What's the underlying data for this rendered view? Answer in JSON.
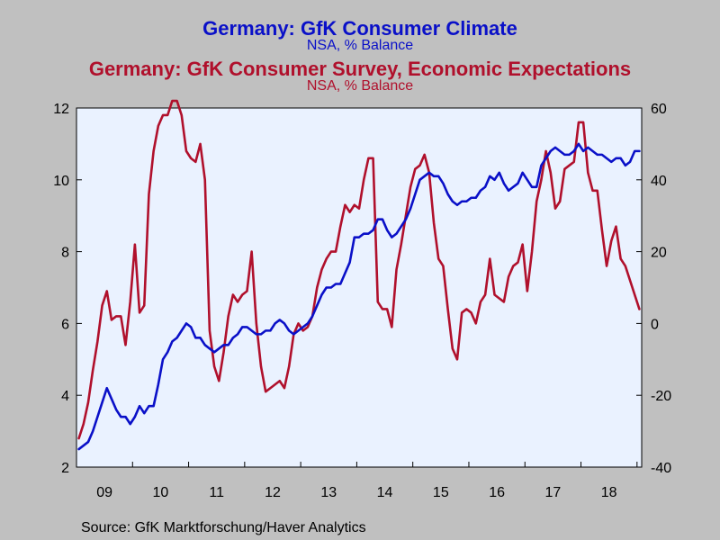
{
  "titles": {
    "title1": "Germany: GfK Consumer Climate",
    "subtitle1": "NSA, % Balance",
    "title2": "Germany: GfK Consumer Survey, Economic Expectations",
    "subtitle2": "NSA, % Balance"
  },
  "source": "Source:  GfK Marktforschung/Haver Analytics",
  "colors": {
    "plot_bg": "#eaf2ff",
    "background": "#c0c0c0",
    "series1": "#0a10c8",
    "series2": "#b0102c"
  },
  "chart_data": {
    "type": "line",
    "x_start": "2009-01",
    "x_frequency": "monthly",
    "x_tick_labels": [
      "09",
      "10",
      "11",
      "12",
      "13",
      "14",
      "15",
      "16",
      "17",
      "18"
    ],
    "left_axis": {
      "ylim": [
        2,
        12
      ],
      "ticks": [
        "2",
        "4",
        "6",
        "8",
        "10",
        "12"
      ]
    },
    "right_axis": {
      "ylim": [
        -40,
        60
      ],
      "ticks": [
        "-40",
        "-20",
        "0",
        "20",
        "40",
        "60"
      ]
    },
    "grid": false,
    "series": [
      {
        "name": "Germany: GfK Consumer Climate",
        "axis": "left",
        "color": "#0a10c8",
        "values": [
          2.5,
          2.6,
          2.7,
          3.0,
          3.4,
          3.8,
          4.2,
          3.9,
          3.6,
          3.4,
          3.4,
          3.2,
          3.4,
          3.7,
          3.5,
          3.7,
          3.7,
          4.3,
          5.0,
          5.2,
          5.5,
          5.6,
          5.8,
          6.0,
          5.9,
          5.6,
          5.6,
          5.4,
          5.3,
          5.2,
          5.3,
          5.4,
          5.4,
          5.6,
          5.7,
          5.9,
          5.9,
          5.8,
          5.7,
          5.7,
          5.8,
          5.8,
          6.0,
          6.1,
          6.0,
          5.8,
          5.7,
          5.8,
          5.9,
          6.0,
          6.2,
          6.5,
          6.8,
          7.0,
          7.0,
          7.1,
          7.1,
          7.4,
          7.7,
          8.4,
          8.4,
          8.5,
          8.5,
          8.6,
          8.9,
          8.9,
          8.6,
          8.4,
          8.5,
          8.7,
          8.9,
          9.2,
          9.6,
          10.0,
          10.1,
          10.2,
          10.1,
          10.1,
          9.9,
          9.6,
          9.4,
          9.3,
          9.4,
          9.4,
          9.5,
          9.5,
          9.7,
          9.8,
          10.1,
          10.0,
          10.2,
          9.9,
          9.7,
          9.8,
          9.9,
          10.2,
          10.0,
          9.8,
          9.8,
          10.4,
          10.6,
          10.8,
          10.9,
          10.8,
          10.7,
          10.7,
          10.8,
          11.0,
          10.8,
          10.9,
          10.8,
          10.7,
          10.7,
          10.6,
          10.5,
          10.6,
          10.6,
          10.4,
          10.5,
          10.8,
          10.8
        ]
      },
      {
        "name": "Germany: GfK Consumer Survey, Economic Expectations",
        "axis": "right",
        "color": "#b0102c",
        "values": [
          -32,
          -28,
          -22,
          -13,
          -5,
          5,
          9,
          1,
          2,
          2,
          -6,
          6,
          22,
          3,
          5,
          36,
          48,
          55,
          58,
          58,
          62,
          62,
          58,
          48,
          46,
          45,
          50,
          40,
          -2,
          -12,
          -16,
          -8,
          2,
          8,
          6,
          8,
          9,
          20,
          0,
          -12,
          -19,
          -18,
          -17,
          -16,
          -18,
          -12,
          -3,
          0,
          -2,
          -1,
          2,
          10,
          15,
          18,
          20,
          20,
          27,
          33,
          31,
          33,
          32,
          40,
          46,
          46,
          6,
          4,
          4,
          -1,
          15,
          22,
          30,
          38,
          43,
          44,
          47,
          42,
          28,
          18,
          16,
          4,
          -7,
          -10,
          3,
          4,
          3,
          0,
          6,
          8,
          18,
          8,
          7,
          6,
          13,
          16,
          17,
          22,
          9,
          20,
          34,
          40,
          48,
          42,
          32,
          34,
          43,
          44,
          45,
          56,
          56,
          42,
          37,
          37,
          26,
          16,
          23,
          27,
          18,
          16,
          12,
          8,
          4
        ]
      }
    ]
  }
}
